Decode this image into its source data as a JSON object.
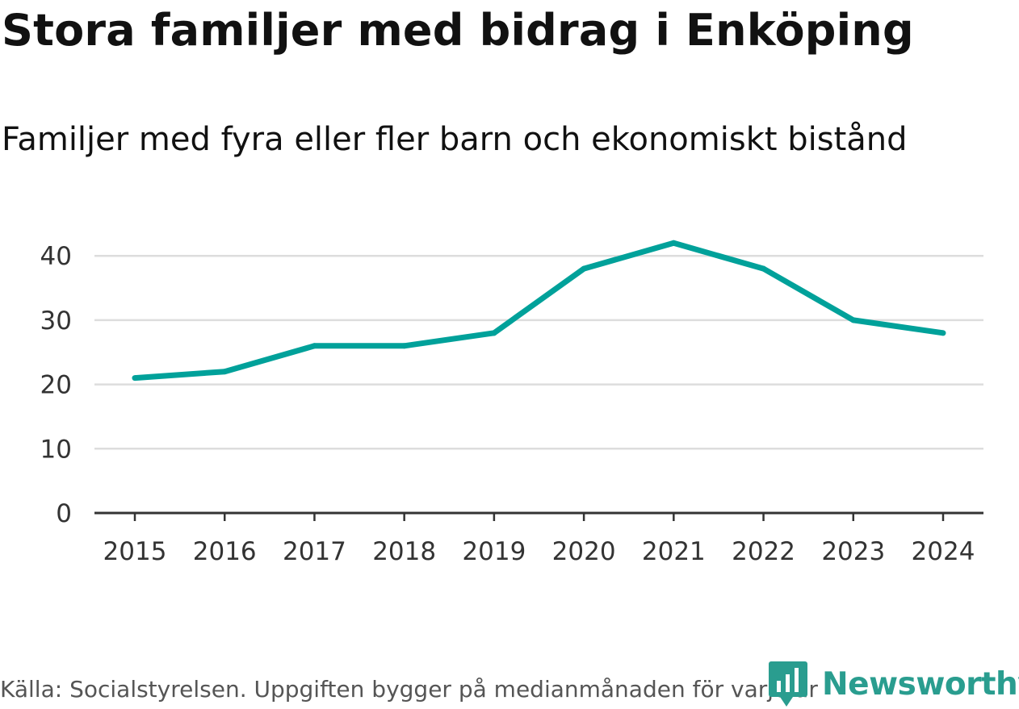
{
  "header": {
    "title": "Stora familjer med bidrag i Enköping",
    "subtitle": "Familjer med fyra eller fler barn och ekonomiskt bistånd"
  },
  "footer": {
    "source": "Källa: Socialstyrelsen. Uppgiften bygger på medianmånaden för varje år",
    "brand": "Newsworthy"
  },
  "colors": {
    "line": "#00a19a",
    "grid": "#dddddd",
    "axis": "#333333",
    "brand": "#2a9d8f"
  },
  "chart_data": {
    "type": "line",
    "title": "Stora familjer med bidrag i Enköping",
    "subtitle": "Familjer med fyra eller fler barn och ekonomiskt bistånd",
    "xlabel": "",
    "ylabel": "",
    "categories": [
      "2015",
      "2016",
      "2017",
      "2018",
      "2019",
      "2020",
      "2021",
      "2022",
      "2023",
      "2024"
    ],
    "series": [
      {
        "name": "Familjer med fyra eller fler barn och ekonomiskt bistånd",
        "values": [
          21,
          22,
          26,
          26,
          28,
          38,
          42,
          38,
          30,
          28
        ]
      }
    ],
    "yticks": [
      0,
      10,
      20,
      30,
      40
    ],
    "ylim": [
      0,
      44
    ],
    "grid": true,
    "legend": "none"
  }
}
